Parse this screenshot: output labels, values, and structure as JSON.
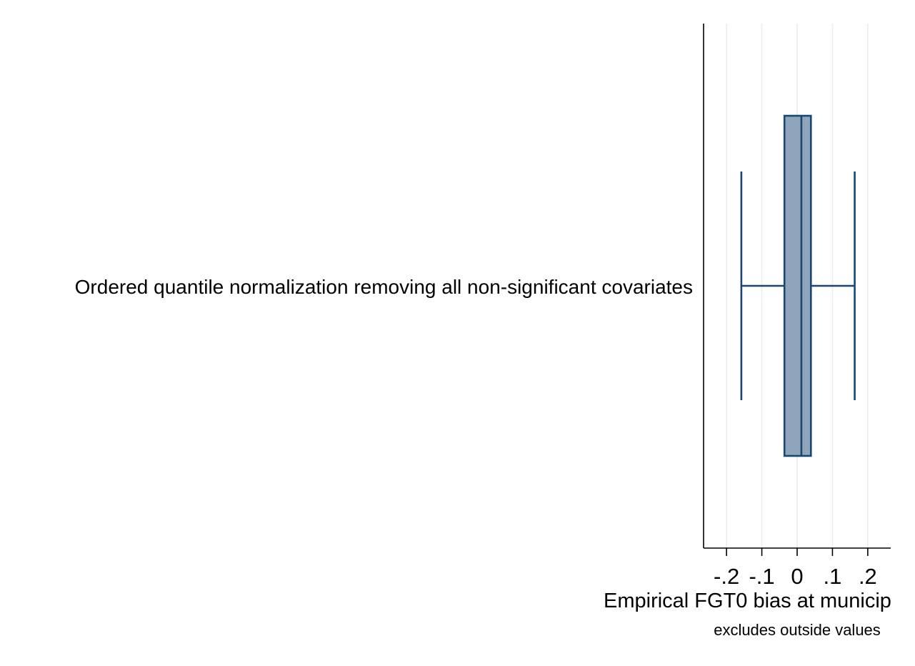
{
  "chart_data": {
    "type": "box",
    "orientation": "horizontal",
    "categories": [
      "Ordered quantile normalization removing all non-significant covariates"
    ],
    "boxes": [
      {
        "category": "Ordered quantile normalization removing all non-significant covariates",
        "whisker_low": -0.158,
        "q1": -0.036,
        "median": 0.012,
        "q3": 0.039,
        "whisker_high": 0.163
      }
    ],
    "xlabel": "Empirical FGT0 bias at municip",
    "note": "excludes outside values",
    "xlim": [
      -0.265,
      0.265
    ],
    "x_ticks": [
      -0.2,
      -0.1,
      0,
      0.1,
      0.2
    ],
    "x_tick_labels": [
      "-.2",
      "-.1",
      "0",
      ".1",
      ".2"
    ],
    "grid": "vertical",
    "colors": {
      "box_fill": "#8fa5bb",
      "box_stroke": "#1a476f",
      "grid": "#e6f0ee",
      "axis": "#000000"
    }
  }
}
